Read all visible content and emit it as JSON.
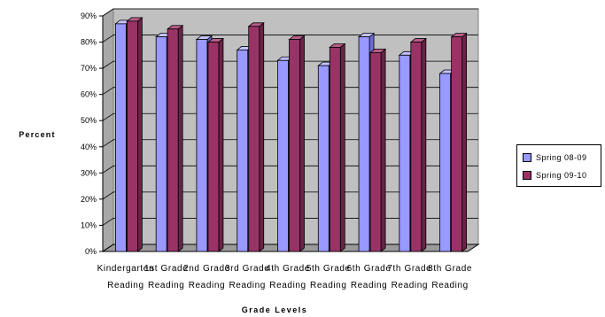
{
  "chart_data": {
    "type": "bar",
    "title": "",
    "xlabel": "Grade Levels",
    "ylabel": "Percent",
    "ylim": [
      0,
      90
    ],
    "yticks": [
      "0%",
      "10%",
      "20%",
      "30%",
      "40%",
      "50%",
      "60%",
      "70%",
      "80%",
      "90%"
    ],
    "categories": [
      [
        "Kindergarten",
        "Reading"
      ],
      [
        "1st Grade",
        "Reading"
      ],
      [
        "2nd Grade",
        "Reading"
      ],
      [
        "3rd Grade",
        "Reading"
      ],
      [
        "4th Grade",
        "Reading"
      ],
      [
        "5th Grade",
        "Reading"
      ],
      [
        "6th Grade",
        "Reading"
      ],
      [
        "7th Grade",
        "Reading"
      ],
      [
        "8th Grade",
        "Reading"
      ]
    ],
    "series": [
      {
        "name": "Spring 08-09",
        "color": "#9999ff",
        "top_color": "#c2c2ff",
        "side_color": "#6b6bd6",
        "values": [
          87,
          82,
          81,
          77,
          73,
          71,
          82,
          75,
          68
        ]
      },
      {
        "name": "Spring 09-10",
        "color": "#993366",
        "top_color": "#b85c88",
        "side_color": "#6b2247",
        "values": [
          88,
          85,
          80,
          86,
          81,
          78,
          76,
          80,
          82
        ]
      }
    ],
    "grid": true,
    "legend_position": "right",
    "plot_background": "#c0c0c0"
  }
}
